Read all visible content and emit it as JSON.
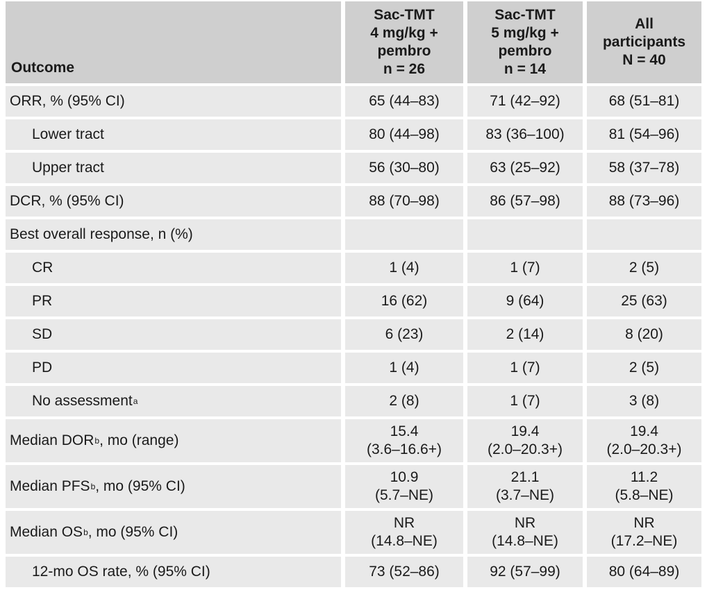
{
  "header": {
    "outcome": "Outcome",
    "columns": [
      "Sac-TMT\n4 mg/kg +\npembro\nn = 26",
      "Sac-TMT\n5 mg/kg +\npembro\nn = 14",
      "All\nparticipants\nN = 40"
    ]
  },
  "rows": [
    {
      "label": "ORR, % (95% CI)",
      "values": [
        "65 (44–83)",
        "71 (42–92)",
        "68 (51–81)"
      ]
    },
    {
      "label": "Lower tract",
      "values": [
        "80 (44–98)",
        "83 (36–100)",
        "81 (54–96)"
      ]
    },
    {
      "label": "Upper tract",
      "values": [
        "56 (30–80)",
        "63 (25–92)",
        "58 (37–78)"
      ]
    },
    {
      "label": "DCR, % (95% CI)",
      "values": [
        "88 (70–98)",
        "86 (57–98)",
        "88 (73–96)"
      ]
    },
    {
      "label": "Best overall response, n (%)",
      "values": [
        "",
        "",
        ""
      ]
    },
    {
      "label": "CR",
      "values": [
        "1 (4)",
        "1 (7)",
        "2 (5)"
      ]
    },
    {
      "label": "PR",
      "values": [
        "16 (62)",
        "9 (64)",
        "25 (63)"
      ]
    },
    {
      "label": "SD",
      "values": [
        "6 (23)",
        "2 (14)",
        "8 (20)"
      ]
    },
    {
      "label": "PD",
      "values": [
        "1 (4)",
        "1 (7)",
        "2 (5)"
      ]
    },
    {
      "label": "No assessment",
      "sup": "a",
      "values": [
        "2 (8)",
        "1 (7)",
        "3 (8)"
      ]
    },
    {
      "label": "Median DOR",
      "sup": "b",
      "suffix": ", mo (range)",
      "values": [
        [
          "15.4",
          "(3.6–16.6+)"
        ],
        [
          "19.4",
          "(2.0–20.3+)"
        ],
        [
          "19.4",
          "(2.0–20.3+)"
        ]
      ]
    },
    {
      "label": "Median PFS",
      "sup": "b",
      "suffix": ", mo (95% CI)",
      "values": [
        [
          "10.9",
          "(5.7–NE)"
        ],
        [
          "21.1",
          "(3.7–NE)"
        ],
        [
          "11.2",
          "(5.8–NE)"
        ]
      ]
    },
    {
      "label": "Median OS",
      "sup": "b",
      "suffix": ", mo (95% CI)",
      "values": [
        [
          "NR",
          "(14.8–NE)"
        ],
        [
          "NR",
          "(14.8–NE)"
        ],
        [
          "NR",
          "(17.2–NE)"
        ]
      ]
    },
    {
      "label": "12-mo OS rate, % (95% CI)",
      "values": [
        "73 (52–86)",
        "92 (57–99)",
        "80 (64–89)"
      ]
    }
  ]
}
